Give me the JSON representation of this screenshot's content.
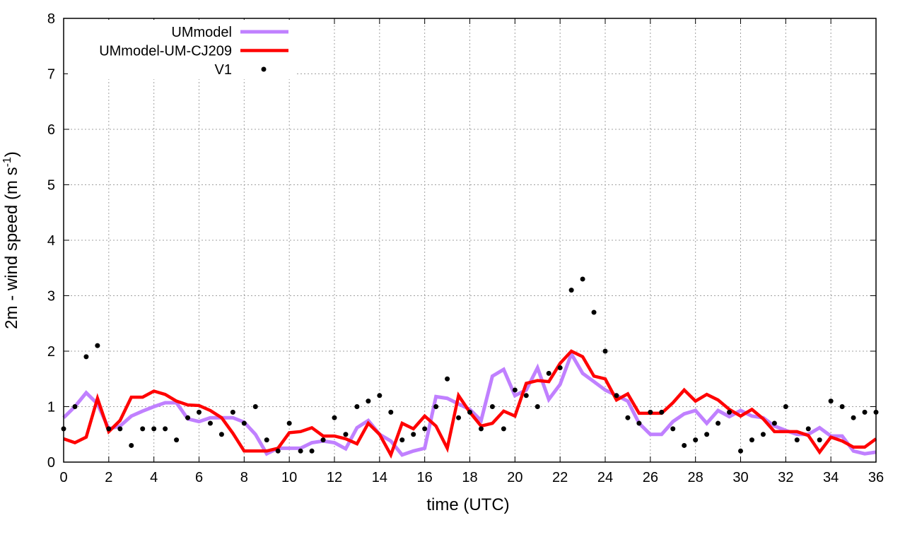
{
  "chart_data": {
    "type": "line",
    "title": "",
    "xlabel": "time (UTC)",
    "ylabel_main": "2m - wind speed  (m s",
    "ylabel_sup": "-1",
    "ylabel_close": ")",
    "xlim": [
      0,
      36
    ],
    "ylim": [
      0,
      8
    ],
    "xticks": [
      "0",
      "2",
      "4",
      "6",
      "8",
      "10",
      "12",
      "14",
      "16",
      "18",
      "20",
      "22",
      "24",
      "26",
      "28",
      "30",
      "32",
      "34",
      "36"
    ],
    "yticks": [
      "0",
      "1",
      "2",
      "3",
      "4",
      "5",
      "6",
      "7",
      "8"
    ],
    "grid": true,
    "legend_position": "top-left",
    "x": [
      0,
      0.5,
      1,
      1.5,
      2,
      2.5,
      3,
      3.5,
      4,
      4.5,
      5,
      5.5,
      6,
      6.5,
      7,
      7.5,
      8,
      8.5,
      9,
      9.5,
      10,
      10.5,
      11,
      11.5,
      12,
      12.5,
      13,
      13.5,
      14,
      14.5,
      15,
      15.5,
      16,
      16.5,
      17,
      17.5,
      18,
      18.5,
      19,
      19.5,
      20,
      20.5,
      21,
      21.5,
      22,
      22.5,
      23,
      23.5,
      24,
      24.5,
      25,
      25.5,
      26,
      26.5,
      27,
      27.5,
      28,
      28.5,
      29,
      29.5,
      30,
      30.5,
      31,
      31.5,
      32,
      32.5,
      33,
      33.5,
      34,
      34.5,
      35,
      35.5,
      36
    ],
    "series": [
      {
        "name": "UMmodel",
        "style": "line",
        "color": "#c080ff",
        "values": [
          0.8,
          1.0,
          1.25,
          1.05,
          0.6,
          0.65,
          0.83,
          0.92,
          1.0,
          1.07,
          1.07,
          0.78,
          0.73,
          0.8,
          0.8,
          0.8,
          0.72,
          0.5,
          0.15,
          0.25,
          0.25,
          0.25,
          0.35,
          0.38,
          0.35,
          0.24,
          0.62,
          0.75,
          0.5,
          0.38,
          0.13,
          0.2,
          0.25,
          1.18,
          1.15,
          1.05,
          0.95,
          0.75,
          1.55,
          1.67,
          1.2,
          1.3,
          1.7,
          1.13,
          1.4,
          1.95,
          1.6,
          1.45,
          1.3,
          1.2,
          1.1,
          0.7,
          0.5,
          0.5,
          0.73,
          0.87,
          0.93,
          0.7,
          0.93,
          0.82,
          0.93,
          0.83,
          0.8,
          0.65,
          0.57,
          0.5,
          0.5,
          0.62,
          0.47,
          0.47,
          0.2,
          0.15,
          0.18
        ]
      },
      {
        "name": "UMmodel-UM-CJ209",
        "style": "line",
        "color": "#ff0000",
        "values": [
          0.42,
          0.35,
          0.45,
          1.15,
          0.55,
          0.75,
          1.17,
          1.17,
          1.28,
          1.22,
          1.1,
          1.03,
          1.02,
          0.93,
          0.8,
          0.52,
          0.2,
          0.2,
          0.2,
          0.25,
          0.53,
          0.55,
          0.62,
          0.47,
          0.47,
          0.42,
          0.33,
          0.7,
          0.5,
          0.13,
          0.7,
          0.6,
          0.83,
          0.65,
          0.25,
          1.2,
          0.9,
          0.65,
          0.7,
          0.92,
          0.83,
          1.42,
          1.47,
          1.45,
          1.78,
          2.0,
          1.9,
          1.55,
          1.5,
          1.12,
          1.23,
          0.88,
          0.88,
          0.88,
          1.07,
          1.3,
          1.1,
          1.22,
          1.12,
          0.95,
          0.83,
          0.95,
          0.78,
          0.55,
          0.55,
          0.55,
          0.48,
          0.18,
          0.45,
          0.38,
          0.27,
          0.27,
          0.42
        ]
      },
      {
        "name": "V1",
        "style": "points",
        "color": "#000000",
        "values": [
          0.6,
          1.0,
          1.9,
          2.1,
          0.6,
          0.6,
          0.3,
          0.6,
          0.6,
          0.6,
          0.4,
          0.8,
          0.9,
          0.7,
          0.5,
          0.9,
          0.7,
          1.0,
          0.4,
          0.2,
          0.7,
          0.2,
          0.2,
          0.4,
          0.8,
          0.5,
          1.0,
          1.1,
          1.2,
          0.9,
          0.4,
          0.5,
          0.6,
          1.0,
          1.5,
          0.8,
          0.9,
          0.6,
          1.0,
          0.6,
          1.3,
          1.2,
          1.0,
          1.6,
          1.7,
          3.1,
          3.3,
          2.7,
          2.0,
          1.2,
          0.8,
          0.7,
          0.9,
          0.9,
          0.6,
          0.3,
          0.4,
          0.5,
          0.7,
          0.9,
          0.2,
          0.4,
          0.5,
          0.7,
          1.0,
          0.4,
          0.6,
          0.4,
          1.1,
          1.0,
          0.8,
          0.9,
          0.9
        ]
      }
    ]
  }
}
